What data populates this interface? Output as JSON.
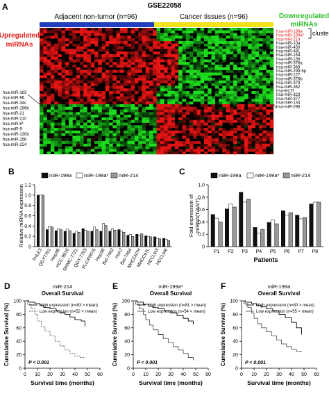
{
  "panel_a": {
    "label": "A",
    "title": "GSE22058",
    "group_left": "Adjacent non-tumor (n=96)",
    "group_right": "Cancer tissues (n=96)",
    "upregulated_label": [
      "Upregulated",
      "miRNAs"
    ],
    "downregulated_label": [
      "Downregulated",
      "miRNAs"
    ],
    "cluster_label": "cluster",
    "right_mirnas": [
      "hsa-miR-199a",
      "hsa-miR-199a*",
      "hsa-miR-214",
      "hsa-miR-10a",
      "hsa-miR-450",
      "hsa-miR-481",
      "hsa-miR-154",
      "hsa-miR-136",
      "hsa-miR-376a",
      "hsa-miR-368",
      "hsa-miR-299-5p",
      "hsa-miR-127",
      "hsa-miR-376b",
      "hsa-miR-379",
      "hsa-miR-382",
      "hsa-let-7f",
      "hsa-miR-323",
      "hsa-miR-377",
      "hsa-miR-134",
      "hsa-miR-296"
    ],
    "left_mirnas": [
      "hsa-miR-183",
      "hsa-miR-96",
      "hsa-miR-34c",
      "hsa-miR-196b",
      "hsa-miR-21",
      "hsa-miR-210",
      "hsa-miR-6*",
      "hsa-miR-9",
      "hsa-miR-130b",
      "hsa-miR-15b",
      "hsa-miR-224"
    ],
    "colors": {
      "left_bar": "#1f3fbf",
      "right_bar": "#f2e21a",
      "up_label": "#e0201a",
      "down_label": "#2bbf2b",
      "highlight": "#e0201a"
    }
  },
  "chart_data": [
    {
      "panel": "B",
      "type": "bar",
      "ylabel": "Relative miRNA expression",
      "ylim": [
        0,
        1.2
      ],
      "yticks": [
        "0",
        "0.2",
        "0.4",
        "0.6",
        "0.8",
        "1.0",
        "1.2"
      ],
      "categories": [
        "THLE3",
        "QGY7701",
        "Hep3B",
        "HCC-9810",
        "SMMC-7721",
        "QGY-7703",
        "PLC/PRF/5",
        "Hep3B",
        "Bel-7402",
        "Huh7",
        "Bel-7404",
        "MHCC97H",
        "MHCC97L",
        "HCCLM3",
        "HCCLM6"
      ],
      "series": [
        {
          "name": "miR-199a",
          "color": "#111111",
          "values": [
            1.0,
            0.33,
            0.31,
            0.3,
            0.26,
            0.35,
            0.3,
            0.3,
            0.3,
            0.33,
            0.22,
            0.24,
            0.21,
            0.19,
            0.16
          ]
        },
        {
          "name": "miR-199a*",
          "color": "#ffffff",
          "values": [
            1.0,
            0.4,
            0.35,
            0.34,
            0.3,
            0.32,
            0.38,
            0.45,
            0.35,
            0.3,
            0.24,
            0.21,
            0.2,
            0.16,
            0.14
          ]
        },
        {
          "name": "miR-214",
          "color": "#9a9a9a",
          "values": [
            1.0,
            0.38,
            0.33,
            0.31,
            0.28,
            0.3,
            0.33,
            0.41,
            0.32,
            0.28,
            0.2,
            0.25,
            0.19,
            0.15,
            0.12
          ]
        }
      ]
    },
    {
      "panel": "C",
      "type": "bar",
      "ylabel": "Fold expression of miRNA(T/ANT)",
      "xlabel": "Patients",
      "ylim": [
        0,
        1.0
      ],
      "yticks": [
        "0",
        "0.2",
        "0.4",
        "0.6",
        "0.8",
        "1.0"
      ],
      "categories": [
        "P1",
        "P2",
        "P3",
        "P4",
        "P5",
        "P6",
        "P7",
        "P8"
      ],
      "series": [
        {
          "name": "miR-199a",
          "color": "#111111",
          "values": [
            0.52,
            0.61,
            0.88,
            0.31,
            0.39,
            0.58,
            0.51,
            0.69
          ]
        },
        {
          "name": "miR-199a*",
          "color": "#ffffff",
          "values": [
            0.46,
            0.69,
            0.72,
            0.22,
            0.43,
            0.51,
            0.45,
            0.72
          ]
        },
        {
          "name": "miR-214",
          "color": "#9a9a9a",
          "values": [
            0.4,
            0.64,
            0.77,
            0.28,
            0.37,
            0.55,
            0.47,
            0.72
          ]
        }
      ]
    },
    {
      "panel": "D",
      "type": "line",
      "title": "miR-214",
      "subtitle": "Overall Survival",
      "xlabel": "Survival time (months)",
      "ylabel": "Cumulative Survival (%)",
      "xlim": [
        0,
        60
      ],
      "ylim": [
        0,
        100
      ],
      "xticks": [
        "0",
        "10",
        "20",
        "30",
        "40",
        "50",
        "60"
      ],
      "yticks": [
        "0",
        "20",
        "40",
        "60",
        "80",
        "100"
      ],
      "p_value": "P < 0.001",
      "series": [
        {
          "name": "High expression (n=83 > mean)",
          "dash": "solid",
          "x": [
            0,
            3,
            8,
            12,
            15,
            20,
            25,
            28,
            32,
            36,
            40,
            45,
            48
          ],
          "y": [
            100,
            98,
            96,
            93,
            90,
            88,
            85,
            82,
            80,
            76,
            72,
            70,
            62
          ]
        },
        {
          "name": "Low expression (n=52 < mean)",
          "dash": "dashed",
          "x": [
            0,
            2,
            5,
            8,
            10,
            13,
            16,
            20,
            24,
            28,
            32,
            36,
            40,
            44,
            48
          ],
          "y": [
            100,
            95,
            88,
            80,
            70,
            62,
            55,
            48,
            40,
            33,
            27,
            22,
            18,
            16,
            15
          ]
        }
      ]
    },
    {
      "panel": "E",
      "type": "line",
      "title": "miR-199a*",
      "subtitle": "Overall Survival",
      "xlabel": "Survival time (months)",
      "ylabel": "Cumulative Survival (%)",
      "xlim": [
        0,
        60
      ],
      "ylim": [
        0,
        100
      ],
      "xticks": [
        "0",
        "10",
        "20",
        "30",
        "40",
        "50",
        "60"
      ],
      "yticks": [
        "0",
        "20",
        "40",
        "60",
        "80",
        "100"
      ],
      "p_value": "P < 0.001",
      "series": [
        {
          "name": "High expression (n=81 > mean)",
          "dash": "solid",
          "x": [
            0,
            3,
            8,
            12,
            16,
            20,
            25,
            30,
            35,
            40,
            44,
            48
          ],
          "y": [
            100,
            98,
            95,
            92,
            90,
            88,
            85,
            82,
            78,
            74,
            70,
            65
          ]
        },
        {
          "name": "Low expression (n=54 < mean)",
          "dash": "solid",
          "x": [
            0,
            2,
            5,
            8,
            10,
            13,
            16,
            20,
            24,
            28,
            32,
            36,
            40,
            44,
            48
          ],
          "y": [
            100,
            95,
            88,
            80,
            72,
            64,
            57,
            50,
            44,
            38,
            32,
            27,
            22,
            16,
            12
          ]
        }
      ]
    },
    {
      "panel": "F",
      "type": "line",
      "title": "miR-199a",
      "subtitle": "Overall Survival",
      "xlabel": "Survival time (months)",
      "ylabel": "Cumulative Survival (%)",
      "xlim": [
        0,
        60
      ],
      "ylim": [
        0,
        100
      ],
      "xticks": [
        "0",
        "10",
        "20",
        "30",
        "40",
        "50",
        "60"
      ],
      "yticks": [
        "0",
        "20",
        "40",
        "60",
        "80",
        "100"
      ],
      "p_value": "P < 0.001",
      "series": [
        {
          "name": "High expression (n=80 > mean)",
          "dash": "solid",
          "x": [
            0,
            3,
            8,
            12,
            16,
            20,
            25,
            30,
            35,
            40,
            44,
            48
          ],
          "y": [
            100,
            98,
            96,
            93,
            91,
            88,
            85,
            80,
            75,
            68,
            60,
            50
          ]
        },
        {
          "name": "Low expression (n=55 < mean)",
          "dash": "solid",
          "x": [
            0,
            2,
            5,
            8,
            10,
            13,
            16,
            20,
            24,
            28,
            32,
            36,
            40,
            44,
            48
          ],
          "y": [
            100,
            96,
            90,
            82,
            74,
            66,
            60,
            54,
            48,
            42,
            36,
            32,
            28,
            25,
            24
          ]
        }
      ]
    }
  ]
}
